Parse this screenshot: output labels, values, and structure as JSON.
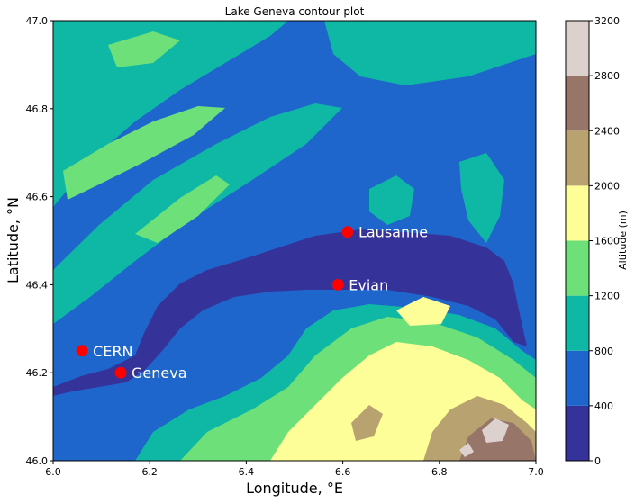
{
  "chart_data": {
    "type": "contour",
    "title": "Lake Geneva contour plot",
    "xlabel": "Longitude, °E",
    "ylabel": "Latitude, °N",
    "xlim": [
      6.0,
      7.0
    ],
    "ylim": [
      46.0,
      47.0
    ],
    "x_ticks": [
      "6.0",
      "6.2",
      "6.4",
      "6.6",
      "6.8",
      "7.0"
    ],
    "y_ticks": [
      "46.0",
      "46.2",
      "46.4",
      "46.6",
      "46.8",
      "47.0"
    ],
    "colorbar": {
      "label": "Altitude (m)",
      "levels": [
        0,
        400,
        800,
        1200,
        1600,
        2000,
        2400,
        2800,
        3200
      ],
      "tick_labels": [
        "0",
        "400",
        "800",
        "1200",
        "1600",
        "2000",
        "2400",
        "2800",
        "3200"
      ],
      "colors": [
        "#35339a",
        "#1f66cc",
        "#0fb8a4",
        "#6ee07a",
        "#fefe98",
        "#b8a370",
        "#977569",
        "#dcd1cc"
      ]
    },
    "points": [
      {
        "name": "Lausanne",
        "lon": 6.61,
        "lat": 46.52
      },
      {
        "name": "Evian",
        "lon": 6.59,
        "lat": 46.4
      },
      {
        "name": "CERN",
        "lon": 6.06,
        "lat": 46.25
      },
      {
        "name": "Geneva",
        "lon": 6.14,
        "lat": 46.2
      }
    ],
    "point_color": "#ff0000",
    "grid": false
  }
}
